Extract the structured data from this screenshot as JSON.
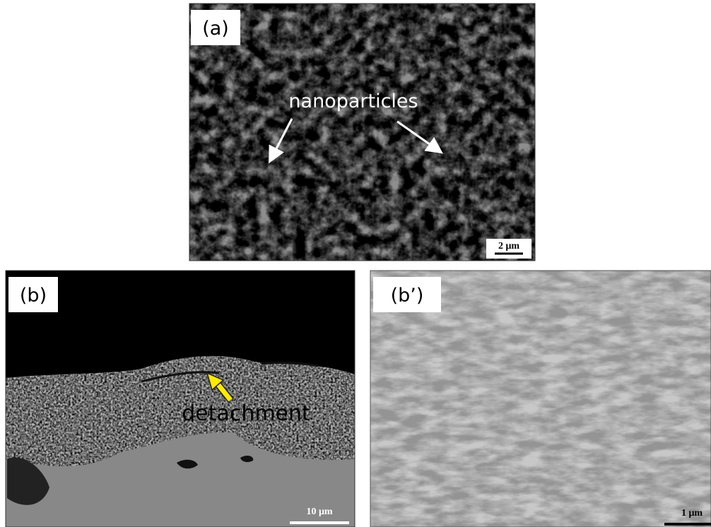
{
  "panels": [
    {
      "label": "(a)",
      "annotation": "nanoparticles",
      "scale_bar": "2 μm"
    },
    {
      "label": "(b)",
      "annotation": "detachment",
      "scale_bar": "10 μm"
    },
    {
      "label": "(b’)",
      "scale_bar": "1 μm"
    }
  ]
}
